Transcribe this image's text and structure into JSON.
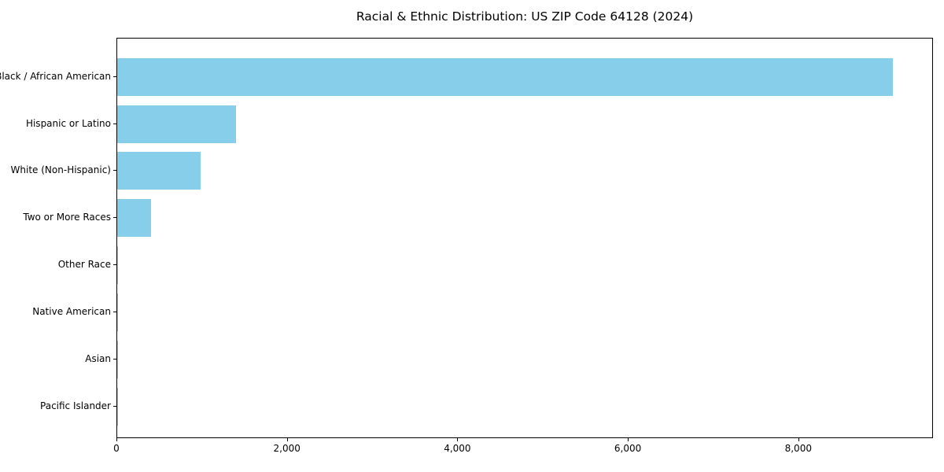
{
  "chart_data": {
    "type": "bar",
    "orientation": "horizontal",
    "title": "Racial & Ethnic Distribution: US ZIP Code 64128 (2024)",
    "categories": [
      "Black / African American",
      "Hispanic or Latino",
      "White (Non-Hispanic)",
      "Two or More Races",
      "Other Race",
      "Native American",
      "Asian",
      "Pacific Islander"
    ],
    "values": [
      9120,
      1395,
      980,
      400,
      12,
      6,
      5,
      2
    ],
    "xlabel": "",
    "ylabel": "",
    "xlim": [
      0,
      9580
    ],
    "xticks": {
      "values": [
        0,
        2000,
        4000,
        6000,
        8000
      ],
      "labels": [
        "0",
        "2,000",
        "4,000",
        "6,000",
        "8,000"
      ]
    },
    "legend": "none",
    "grid": false,
    "bar_color": "#87CEEB",
    "frame_color": "#000000",
    "background_color": "#ffffff"
  }
}
